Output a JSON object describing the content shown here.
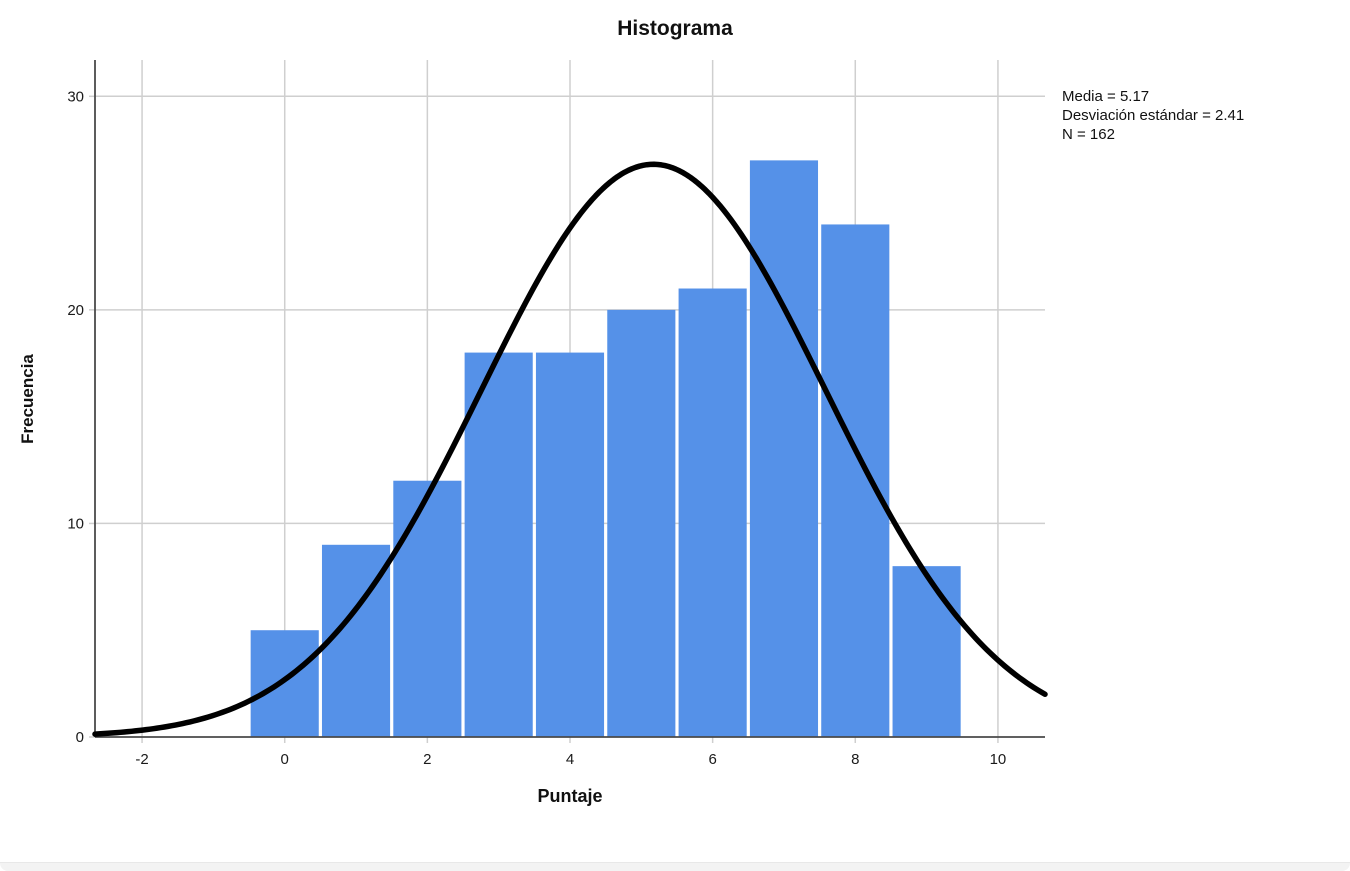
{
  "chart_data": {
    "type": "bar",
    "subtype": "histogram",
    "title": "Histograma",
    "xlabel": "Puntaje",
    "ylabel": "Frecuencia",
    "x": [
      0,
      1,
      2,
      3,
      4,
      5,
      6,
      7,
      8,
      9
    ],
    "values": [
      5,
      9,
      12,
      18,
      18,
      20,
      21,
      27,
      24,
      8
    ],
    "bin_width": 1,
    "xlim": [
      -2.66,
      10.66
    ],
    "ylim": [
      0,
      31.7
    ],
    "xticks": [
      -2,
      0,
      2,
      4,
      6,
      8,
      10
    ],
    "yticks": [
      0,
      10,
      20,
      30
    ],
    "grid": true,
    "legend_position": "none",
    "annotations": [
      "Media = 5.17",
      "Desviación estándar = 2.41",
      "N = 162"
    ],
    "normal_curve": {
      "mean": 5.17,
      "sd": 2.41,
      "n": 162
    },
    "colors": {
      "bar": "#5591E8",
      "bar_gap": "#FFFFFF",
      "curve": "#000000",
      "grid": "#CFCFCF",
      "axis": "#4A4A4A",
      "text": "#1A1A1A"
    }
  }
}
